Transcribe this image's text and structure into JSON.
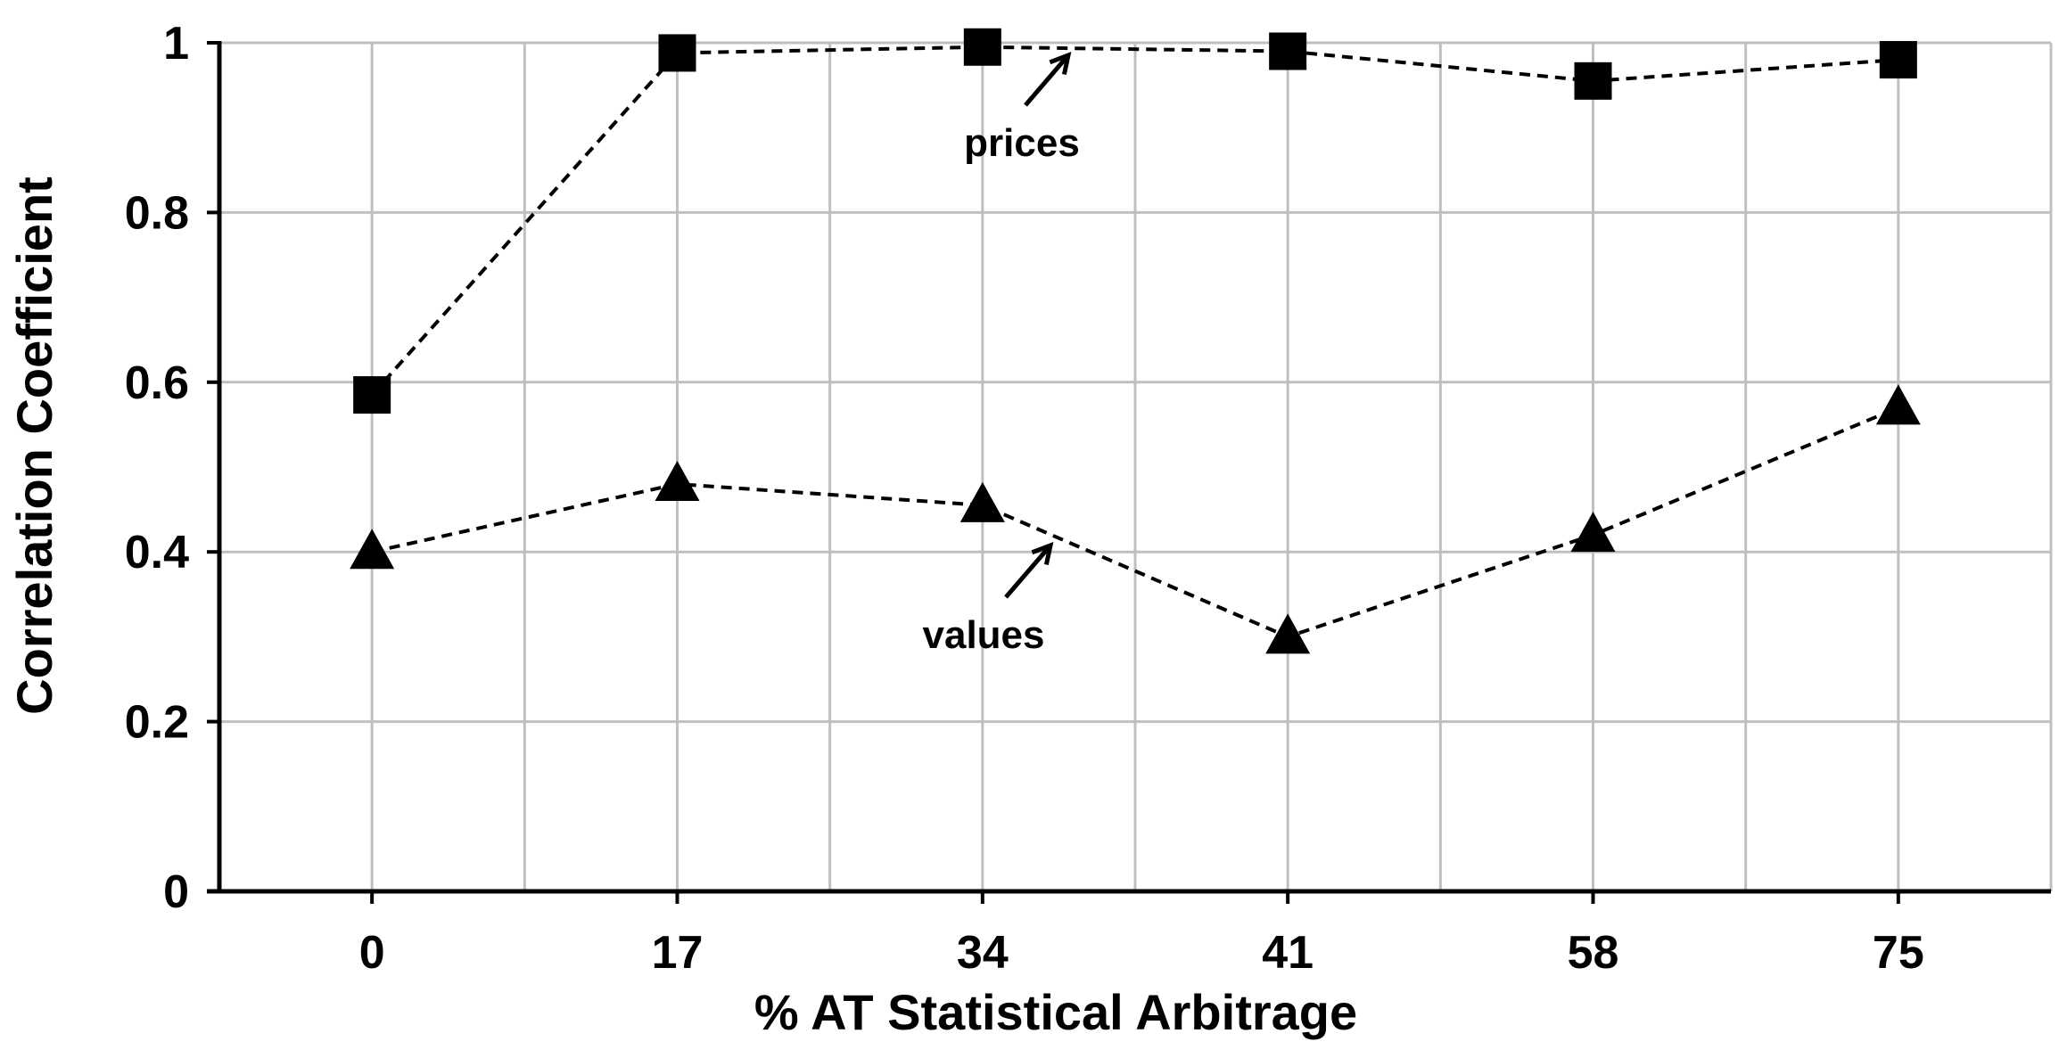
{
  "chart_data": {
    "type": "line",
    "title": "",
    "xlabel": "% AT Statistical Arbitrage",
    "ylabel": "Correlation Coefficient",
    "categories": [
      "0",
      "17",
      "34",
      "41",
      "58",
      "75"
    ],
    "ylim": [
      0,
      1
    ],
    "yticks": [
      "0",
      "0.2",
      "0.4",
      "0.6",
      "0.8",
      "1"
    ],
    "grid": true,
    "legend": "none",
    "series": [
      {
        "name": "prices",
        "marker": "square",
        "values": [
          0.585,
          0.988,
          0.995,
          0.99,
          0.955,
          0.98
        ]
      },
      {
        "name": "values",
        "marker": "triangle",
        "values": [
          0.4,
          0.48,
          0.455,
          0.3,
          0.42,
          0.57
        ]
      }
    ],
    "annotations": [
      {
        "text": "prices",
        "series": "prices"
      },
      {
        "text": "values",
        "series": "values"
      }
    ],
    "colors": {
      "line": "#000000",
      "grid": "#bfbfbf",
      "axis": "#000000"
    }
  }
}
